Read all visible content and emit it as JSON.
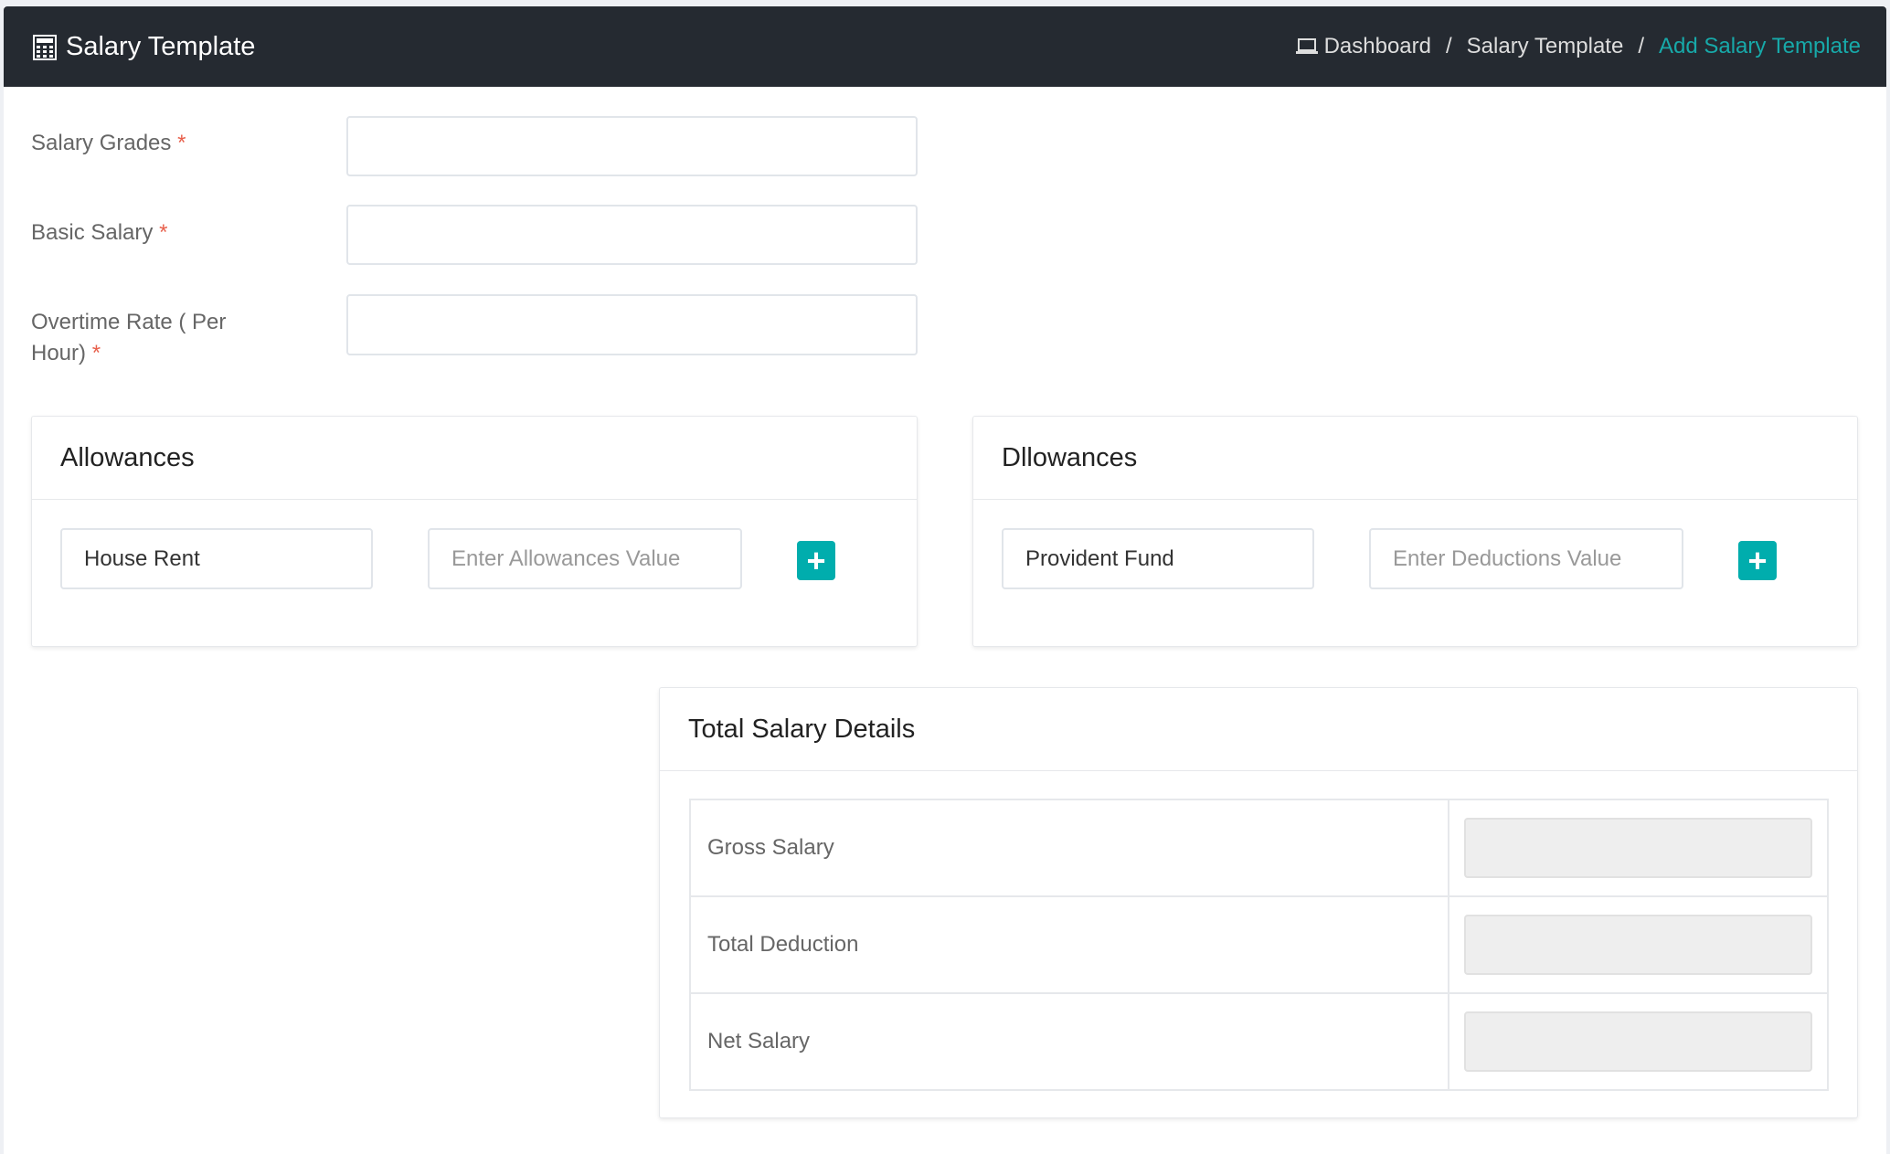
{
  "header": {
    "title": "Salary Template",
    "icon": "calculator-icon",
    "breadcrumb": [
      {
        "label": "Dashboard",
        "icon": "laptop-icon"
      },
      {
        "label": "Salary Template"
      },
      {
        "label": "Add Salary Template"
      }
    ],
    "separator": "/"
  },
  "form": {
    "salary_grades": {
      "label": "Salary Grades",
      "required": "*",
      "value": ""
    },
    "basic_salary": {
      "label": "Basic Salary",
      "required": "*",
      "value": ""
    },
    "overtime_rate": {
      "label": "Overtime Rate ( Per Hour)",
      "required": "*",
      "value": ""
    }
  },
  "allowances": {
    "title": "Allowances",
    "name_value": "House Rent",
    "value_placeholder": "Enter Allowances Value",
    "add_label": "+"
  },
  "deductions": {
    "title": "Dllowances",
    "name_value": "Provident Fund",
    "value_placeholder": "Enter Deductions Value",
    "add_label": "+"
  },
  "totals": {
    "title": "Total Salary Details",
    "rows": [
      {
        "label": "Gross Salary",
        "value": ""
      },
      {
        "label": "Total Deduction",
        "value": ""
      },
      {
        "label": "Net Salary",
        "value": ""
      }
    ]
  },
  "colors": {
    "header_bg": "#252a31",
    "accent": "#00adad",
    "required": "#e8604c"
  }
}
